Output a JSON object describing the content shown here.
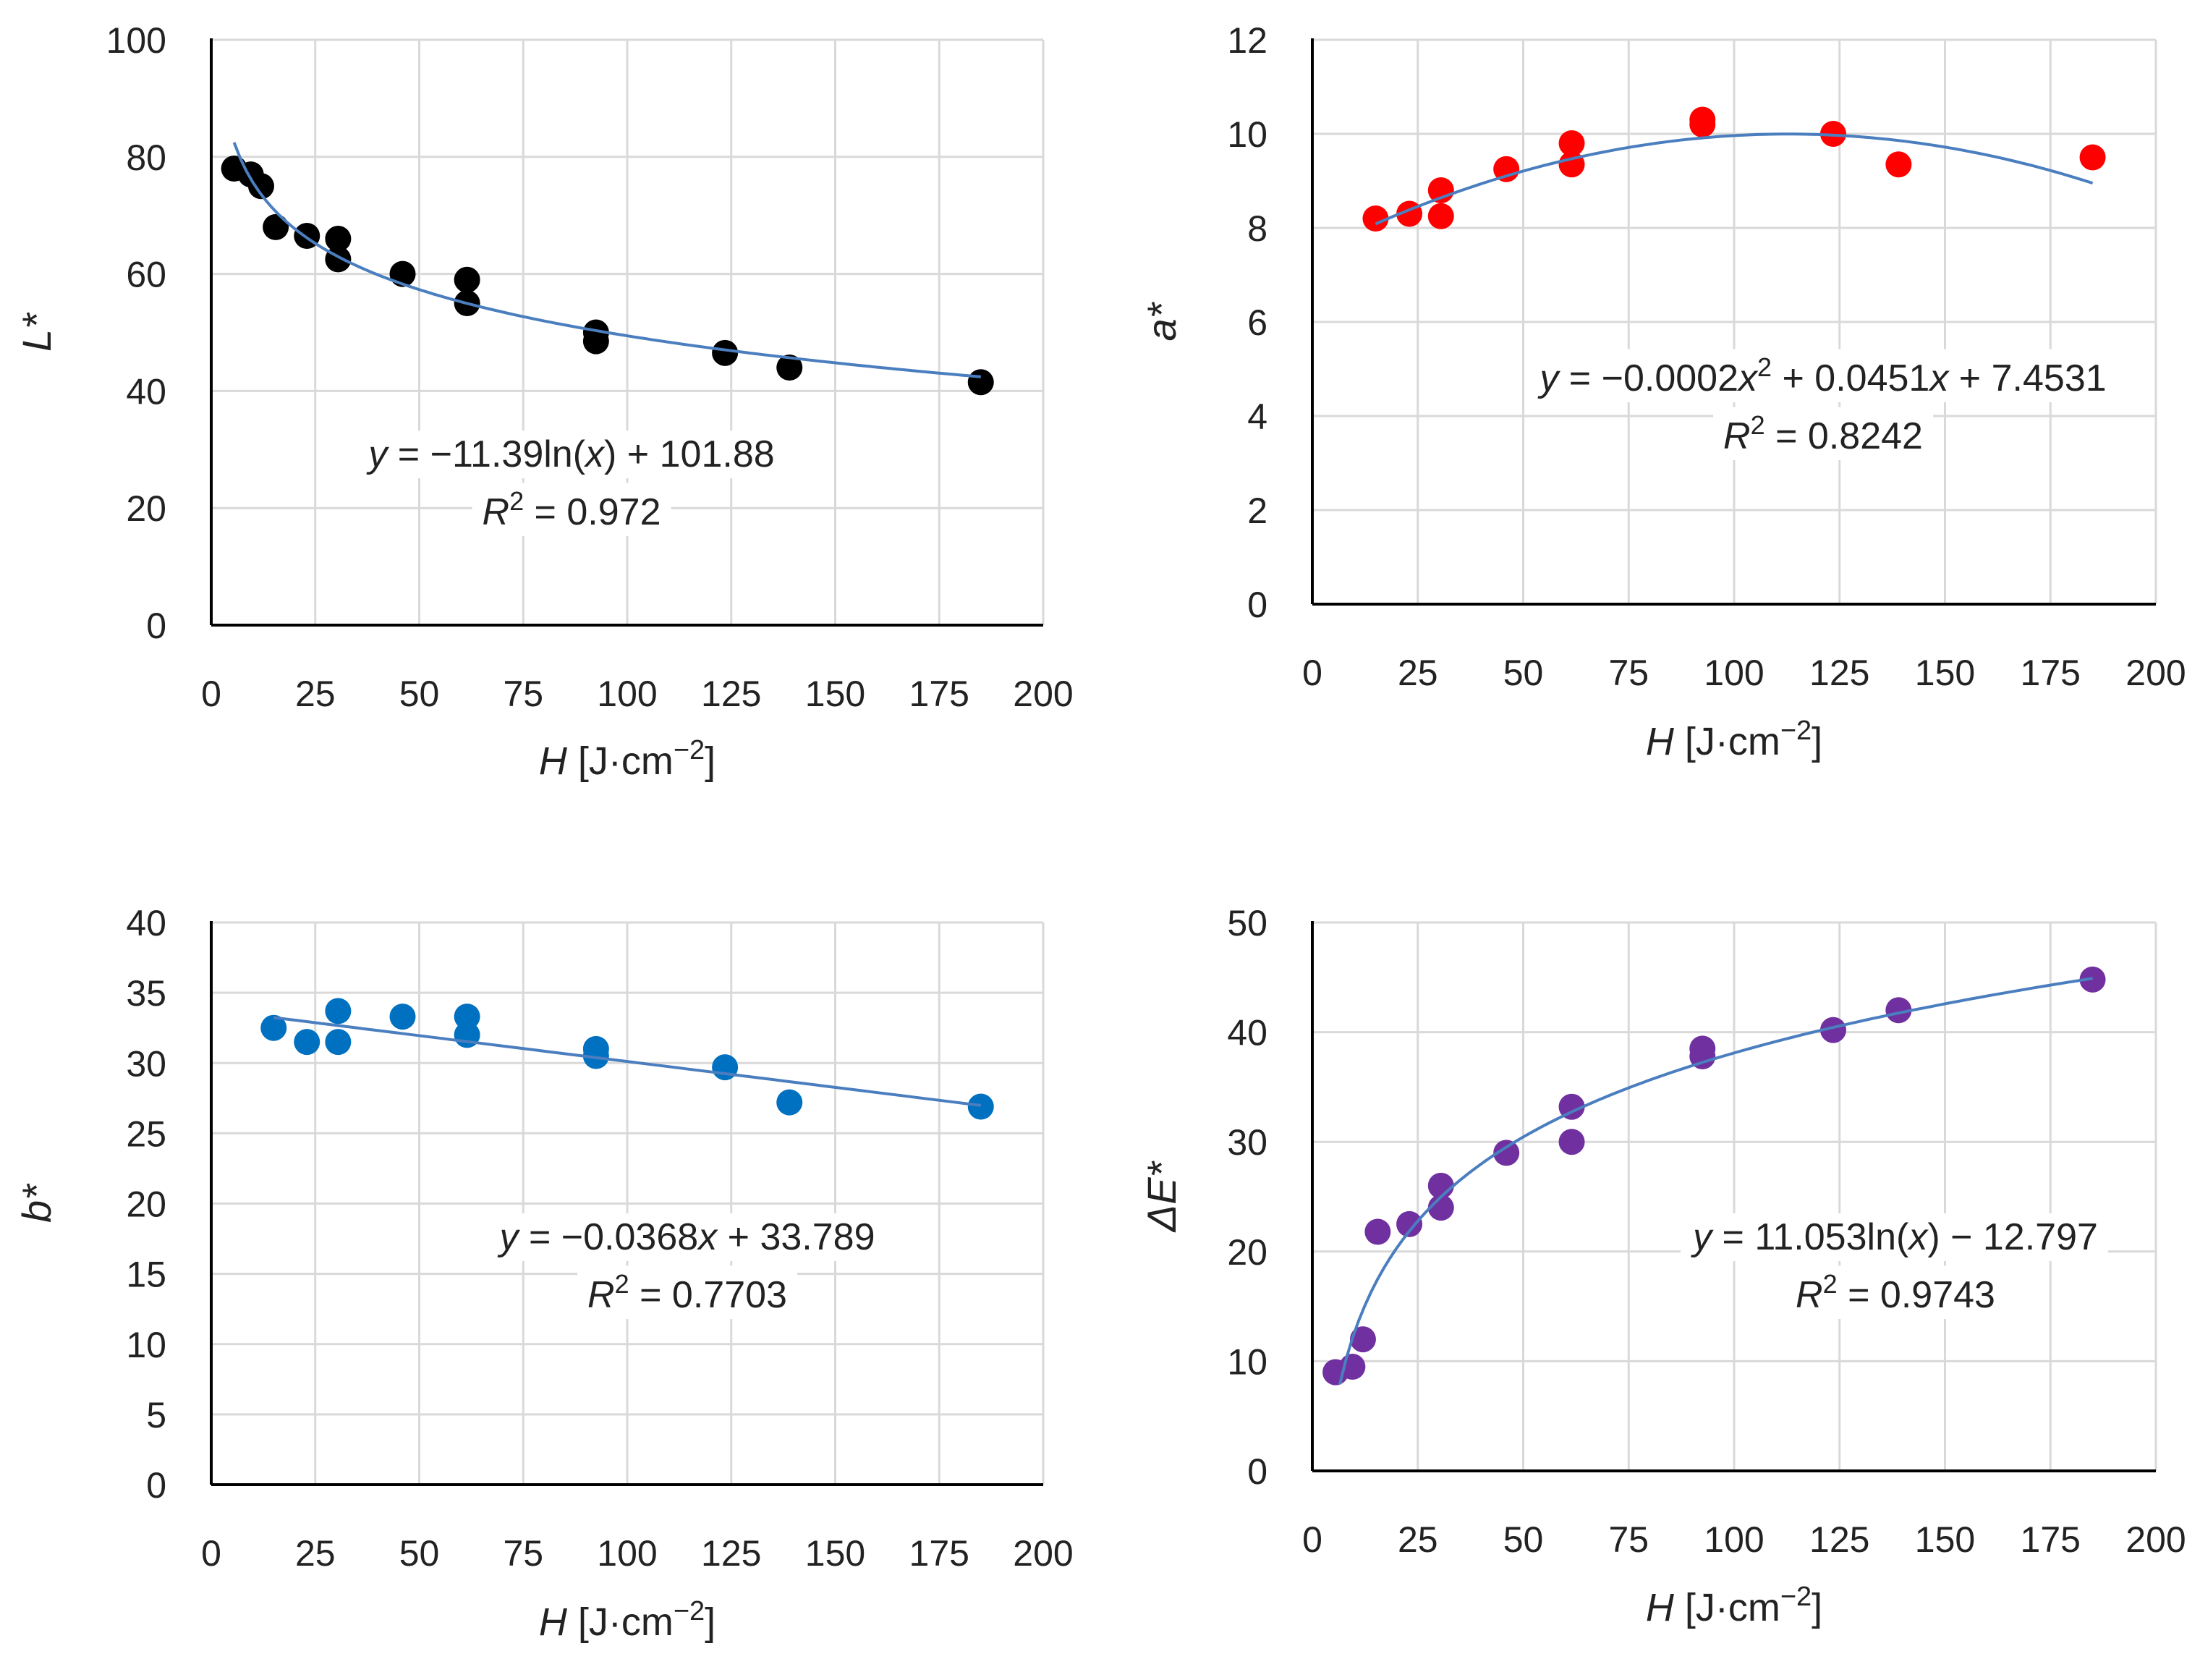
{
  "colors": {
    "background": "#ffffff",
    "grid": "#d9d9d9",
    "axis": "#000000",
    "trendline": "#4a7ebf",
    "text": "#222222"
  },
  "chart_data": [
    {
      "id": "lstar",
      "type": "scatter",
      "xlabel_var": "H",
      "xlabel_unit": " [J·cm",
      "xlabel_sup": "−2",
      "xlabel_close": "]",
      "ylabel": "L*",
      "xlim": [
        0,
        200
      ],
      "ylim": [
        0,
        100
      ],
      "xticks": [
        0,
        25,
        50,
        75,
        100,
        125,
        150,
        175,
        200
      ],
      "yticks": [
        0,
        20,
        40,
        60,
        80,
        100
      ],
      "grid": true,
      "marker_color": "#000000",
      "points": [
        [
          5.5,
          78
        ],
        [
          9.5,
          77
        ],
        [
          12,
          75
        ],
        [
          15.5,
          68
        ],
        [
          23,
          66.5
        ],
        [
          30.5,
          66
        ],
        [
          30.5,
          62.5
        ],
        [
          46,
          60
        ],
        [
          61.5,
          59
        ],
        [
          61.5,
          55
        ],
        [
          92.5,
          50
        ],
        [
          92.5,
          48.5
        ],
        [
          123.5,
          46.5
        ],
        [
          139,
          44
        ],
        [
          185,
          41.5
        ]
      ],
      "trend": {
        "kind": "log",
        "a": -11.39,
        "b": 101.88,
        "x_from": 5.5,
        "x_to": 185
      },
      "equation_parts": [
        "y",
        " = −11.39ln(",
        "x",
        ") + 101.88"
      ],
      "r2_parts": [
        "R",
        "2",
        " = 0.972"
      ],
      "equation_pos": "middle-left"
    },
    {
      "id": "astar",
      "type": "scatter",
      "xlabel_var": "H",
      "xlabel_unit": " [J·cm",
      "xlabel_sup": "−2",
      "xlabel_close": "]",
      "ylabel": "a*",
      "xlim": [
        0,
        200
      ],
      "ylim": [
        0,
        12
      ],
      "xticks": [
        0,
        25,
        50,
        75,
        100,
        125,
        150,
        175,
        200
      ],
      "yticks": [
        0,
        2,
        4,
        6,
        8,
        10,
        12
      ],
      "grid": true,
      "marker_color": "#ff0000",
      "points": [
        [
          15,
          8.2
        ],
        [
          23,
          8.3
        ],
        [
          30.5,
          8.8
        ],
        [
          30.5,
          8.25
        ],
        [
          46,
          9.25
        ],
        [
          61.5,
          9.8
        ],
        [
          61.5,
          9.35
        ],
        [
          92.5,
          10.3
        ],
        [
          92.5,
          10.2
        ],
        [
          123.5,
          10
        ],
        [
          139,
          9.35
        ],
        [
          185,
          9.5
        ]
      ],
      "trend": {
        "kind": "poly2",
        "a": -0.0002,
        "b": 0.0451,
        "c": 7.4531,
        "x_from": 15,
        "x_to": 185
      },
      "equation_parts": [
        "y",
        " = −0.0002",
        "x",
        "2",
        " + 0.0451",
        "x",
        " + 7.4531"
      ],
      "r2_parts": [
        "R",
        "2",
        " = 0.8242"
      ],
      "equation_pos": "middle-right"
    },
    {
      "id": "bstar",
      "type": "scatter",
      "xlabel_var": "H",
      "xlabel_unit": " [J·cm",
      "xlabel_sup": "−2",
      "xlabel_close": "]",
      "ylabel": "b*",
      "xlim": [
        0,
        200
      ],
      "ylim": [
        0,
        40
      ],
      "xticks": [
        0,
        25,
        50,
        75,
        100,
        125,
        150,
        175,
        200
      ],
      "yticks": [
        0,
        5,
        10,
        15,
        20,
        25,
        30,
        35,
        40
      ],
      "grid": true,
      "marker_color": "#0070c0",
      "points": [
        [
          15,
          32.5
        ],
        [
          23,
          31.5
        ],
        [
          30.5,
          33.7
        ],
        [
          30.5,
          31.5
        ],
        [
          46,
          33.3
        ],
        [
          61.5,
          33.3
        ],
        [
          61.5,
          32
        ],
        [
          92.5,
          31
        ],
        [
          92.5,
          30.5
        ],
        [
          123.5,
          29.7
        ],
        [
          139,
          27.2
        ],
        [
          185,
          26.9
        ]
      ],
      "trend": {
        "kind": "linear",
        "a": -0.0368,
        "b": 33.789,
        "x_from": 15,
        "x_to": 185
      },
      "equation_parts": [
        "y",
        " = −0.0368",
        "x",
        " + 33.789"
      ],
      "r2_parts": [
        "R",
        "2",
        " = 0.7703"
      ],
      "equation_pos": "middle-center"
    },
    {
      "id": "deltae",
      "type": "scatter",
      "xlabel_var": "H",
      "xlabel_unit": " [J·cm",
      "xlabel_sup": "−2",
      "xlabel_close": "]",
      "ylabel": "ΔE*",
      "xlim": [
        0,
        200
      ],
      "ylim": [
        0,
        50
      ],
      "xticks": [
        0,
        25,
        50,
        75,
        100,
        125,
        150,
        175,
        200
      ],
      "yticks": [
        0,
        10,
        20,
        30,
        40,
        50
      ],
      "grid": true,
      "marker_color": "#7030a0",
      "points": [
        [
          5.5,
          9
        ],
        [
          9.5,
          9.5
        ],
        [
          12,
          12
        ],
        [
          15.5,
          21.8
        ],
        [
          23,
          22.5
        ],
        [
          30.5,
          26
        ],
        [
          30.5,
          24
        ],
        [
          46,
          29
        ],
        [
          61.5,
          33.2
        ],
        [
          61.5,
          30
        ],
        [
          92.5,
          38.5
        ],
        [
          92.5,
          37.8
        ],
        [
          123.5,
          40.2
        ],
        [
          139,
          42
        ],
        [
          185,
          44.8
        ]
      ],
      "trend": {
        "kind": "log",
        "a": 11.053,
        "b": -12.797,
        "x_from": 6.5,
        "x_to": 185
      },
      "equation_parts": [
        "y",
        " = 11.053ln(",
        "x",
        ") − 12.797"
      ],
      "r2_parts": [
        "R",
        "2",
        " = 0.9743"
      ],
      "equation_pos": "middle-right"
    }
  ]
}
